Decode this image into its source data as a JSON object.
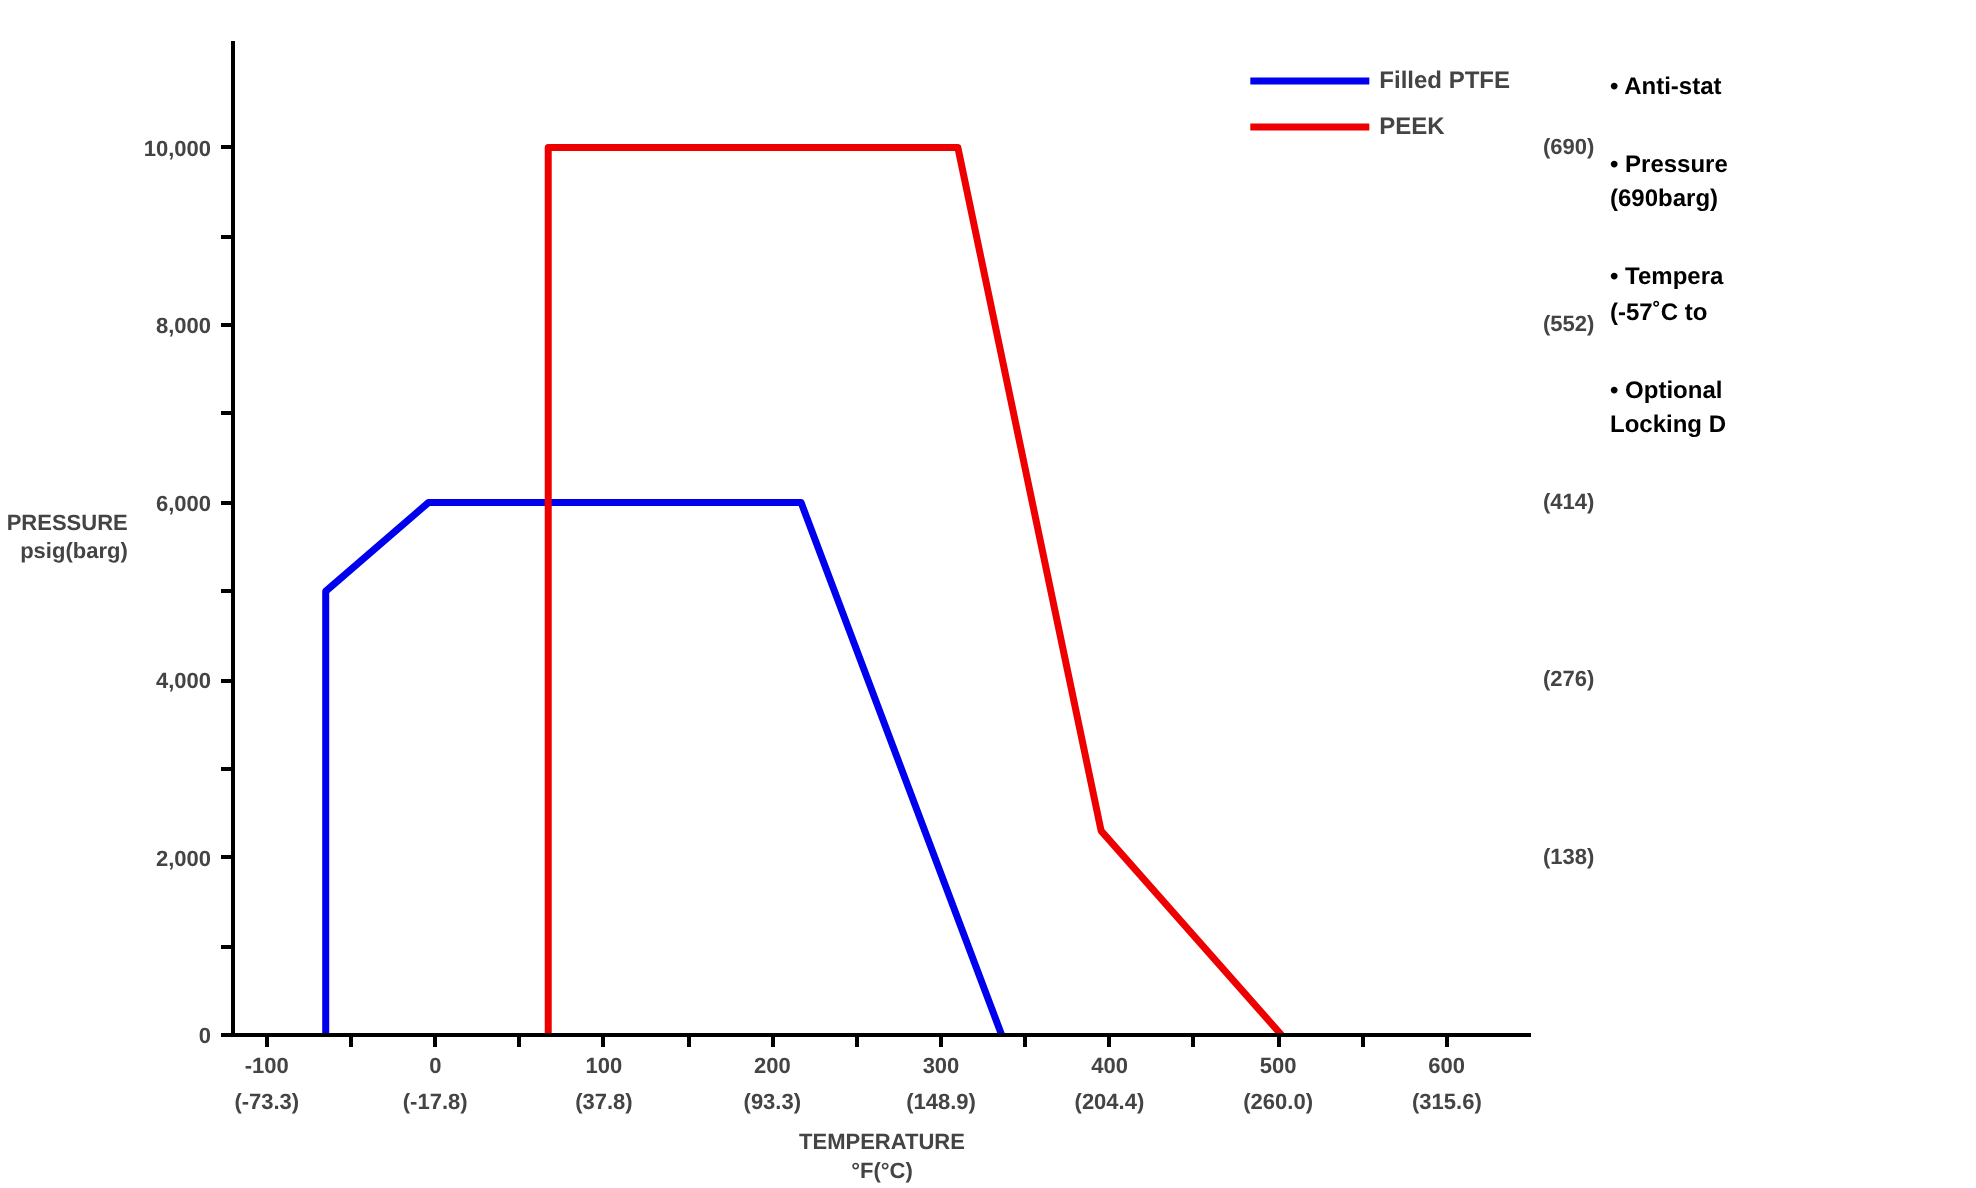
{
  "chart_data": {
    "type": "line",
    "xlabel": "TEMPERATURE\n°F(°C)",
    "ylabel": "PRESSURE\npsig(barg)",
    "series": [
      {
        "name": "Filled PTFE",
        "color": "#0000ee",
        "x": [
          -65,
          -65,
          -4,
          217,
          336
        ],
        "values": [
          0,
          5000,
          6000,
          6000,
          0
        ]
      },
      {
        "name": "PEEK",
        "color": "#ee0000",
        "x": [
          67,
          67,
          310,
          395,
          502
        ],
        "values": [
          0,
          10000,
          10000,
          2300,
          0
        ]
      }
    ],
    "xlim": [
      -120,
      650
    ],
    "ylim": [
      0,
      11200
    ],
    "xticks": [
      -100,
      {
        "value": -50,
        "label": null
      },
      0,
      {
        "value": 50,
        "label": null
      },
      100,
      {
        "value": 150,
        "label": null
      },
      200,
      {
        "value": 250,
        "label": null
      },
      300,
      {
        "value": 350,
        "label": null
      },
      400,
      {
        "value": 450,
        "label": null
      },
      500,
      {
        "value": 550,
        "label": null
      },
      600
    ],
    "yticks": [
      0,
      {
        "value": 1000,
        "label": null
      },
      {
        "value": 2000,
        "label": "2,000"
      },
      {
        "value": 3000,
        "label": null
      },
      {
        "value": 4000,
        "label": "4,000"
      },
      {
        "value": 5000,
        "label": null
      },
      {
        "value": 6000,
        "label": "6,000"
      },
      {
        "value": 7000,
        "label": null
      },
      {
        "value": 8000,
        "label": "8,000"
      },
      {
        "value": 9000,
        "label": null
      },
      {
        "value": 10000,
        "label": "10,000"
      }
    ],
    "x2lim": [
      -84.44,
      343.33
    ],
    "x2ticks": [
      {
        "value": -73.3,
        "label": "(-73.3)"
      },
      {
        "value": -17.8,
        "label": "(-17.8)"
      },
      {
        "value": 37.8,
        "label": "(37.8)"
      },
      {
        "value": 93.3,
        "label": "(93.3)"
      },
      {
        "value": 148.9,
        "label": "(148.9)"
      },
      {
        "value": 204.4,
        "label": "(204.4)"
      },
      {
        "value": 260.0,
        "label": "(260.0)"
      },
      {
        "value": 315.6,
        "label": "(315.6)"
      }
    ],
    "y2lim": [
      0,
      772.8
    ],
    "y2ticks": [
      {
        "value": 138,
        "label": "(138)"
      },
      {
        "value": 276,
        "label": "(276)"
      },
      {
        "value": 414,
        "label": "(414)"
      },
      {
        "value": 552,
        "label": "(552)"
      },
      {
        "value": 690,
        "label": "(690)"
      }
    ],
    "grid": false,
    "legend": "top right",
    "marker": "none",
    "line_style": "solid",
    "annotations": [
      "• Anti-stat",
      "• Pressure\n(690barg)",
      "• Tempera\n(-57˚C to",
      "• Optional\nLocking D"
    ]
  }
}
